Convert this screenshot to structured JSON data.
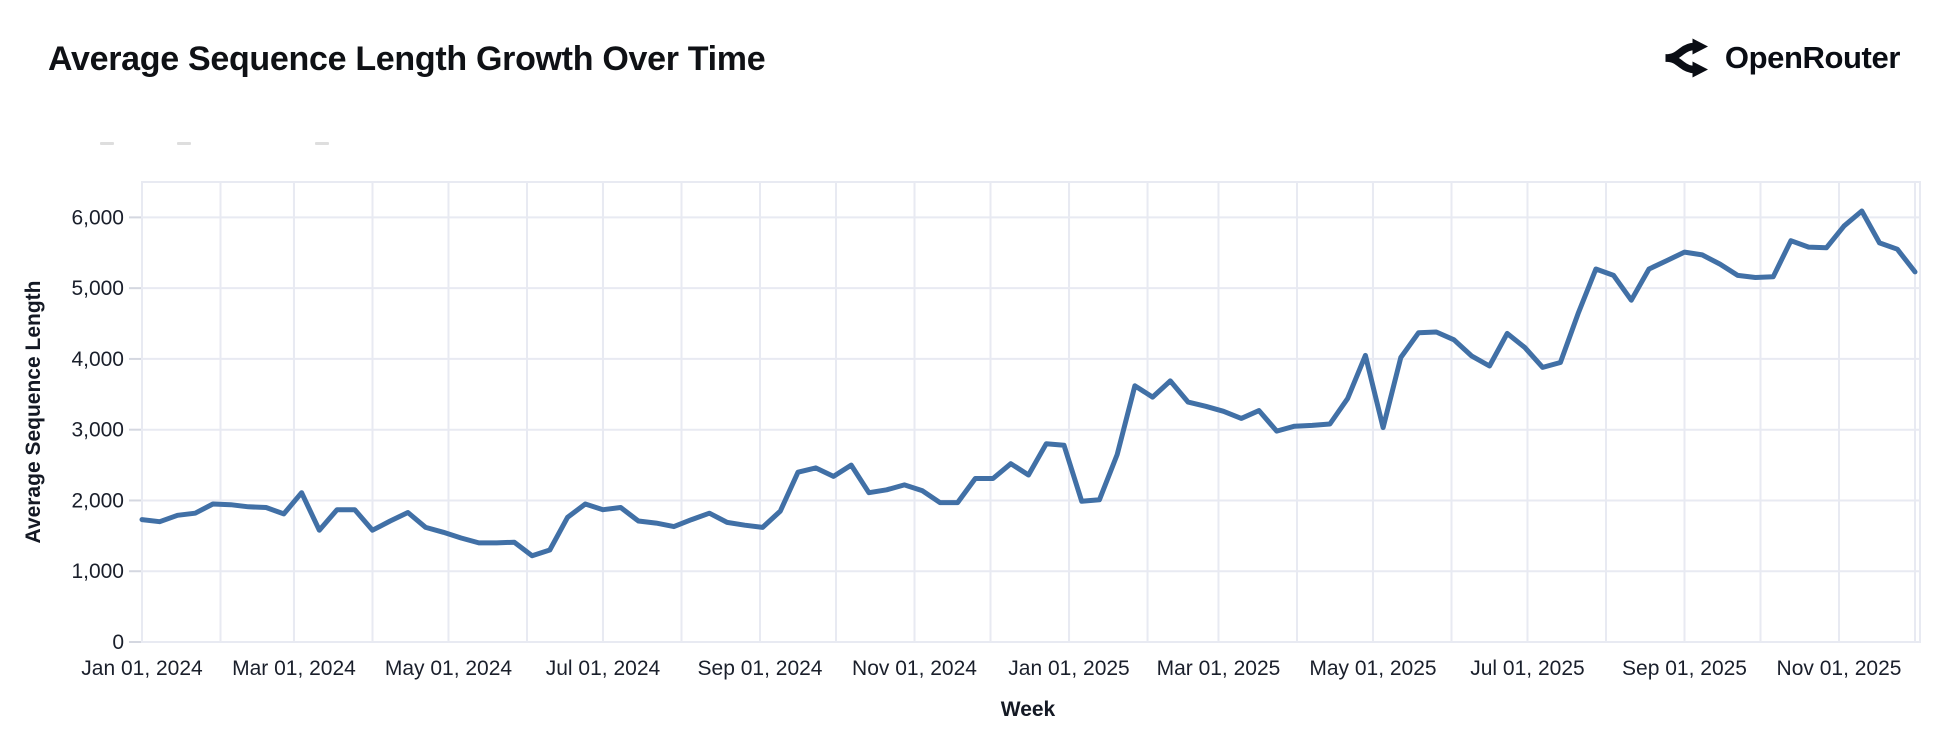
{
  "header": {
    "title": "Average Sequence Length Growth Over Time",
    "brand": {
      "name": "OpenRouter",
      "icon": "openrouter-split-arrows-icon"
    }
  },
  "colors": {
    "line": "#4170a6",
    "grid": "#e8eaf2",
    "tick_dash": "#d4d7e0",
    "text": "#1a1f2b"
  },
  "chart_data": {
    "type": "line",
    "title": "Average Sequence Length Growth Over Time",
    "xlabel": "Week",
    "ylabel": "Average Sequence Length",
    "legend": "none",
    "grid": true,
    "ylim": [
      0,
      6500
    ],
    "y_tick_labels": [
      "0",
      "1,000",
      "2,000",
      "3,000",
      "4,000",
      "5,000",
      "6,000"
    ],
    "y_tick_values": [
      0,
      1000,
      2000,
      3000,
      4000,
      5000,
      6000
    ],
    "x_tick_labels": [
      "Jan 01, 2024",
      "Mar 01, 2024",
      "May 01, 2024",
      "Jul 01, 2024",
      "Sep 01, 2024",
      "Nov 01, 2024",
      "Jan 01, 2025",
      "Mar 01, 2025",
      "May 01, 2025",
      "Jul 01, 2025",
      "Sep 01, 2025",
      "Nov 01, 2025"
    ],
    "x_start_label": "Jan 01, 2024",
    "x_cadence": "weekly",
    "series": [
      {
        "name": "Average Sequence Length",
        "values": [
          1730,
          1700,
          1790,
          1820,
          1950,
          1940,
          1910,
          1900,
          1810,
          2110,
          1580,
          1870,
          1870,
          1580,
          1710,
          1830,
          1620,
          1550,
          1470,
          1400,
          1400,
          1410,
          1220,
          1300,
          1760,
          1950,
          1870,
          1900,
          1710,
          1680,
          1630,
          1730,
          1820,
          1690,
          1650,
          1620,
          1850,
          2400,
          2460,
          2340,
          2500,
          2110,
          2150,
          2220,
          2140,
          1970,
          1970,
          2310,
          2310,
          2520,
          2360,
          2800,
          2780,
          1990,
          2010,
          2650,
          3620,
          3460,
          3690,
          3390,
          3330,
          3260,
          3160,
          3270,
          2980,
          3050,
          3060,
          3080,
          3440,
          4050,
          3030,
          4020,
          4370,
          4380,
          4270,
          4040,
          3900,
          4360,
          4160,
          3880,
          3950,
          4640,
          5270,
          5180,
          4830,
          5270,
          5390,
          5510,
          5470,
          5340,
          5180,
          5150,
          5160,
          5670,
          5580,
          5570,
          5880,
          6090,
          5640,
          5550,
          5230
        ]
      }
    ]
  }
}
